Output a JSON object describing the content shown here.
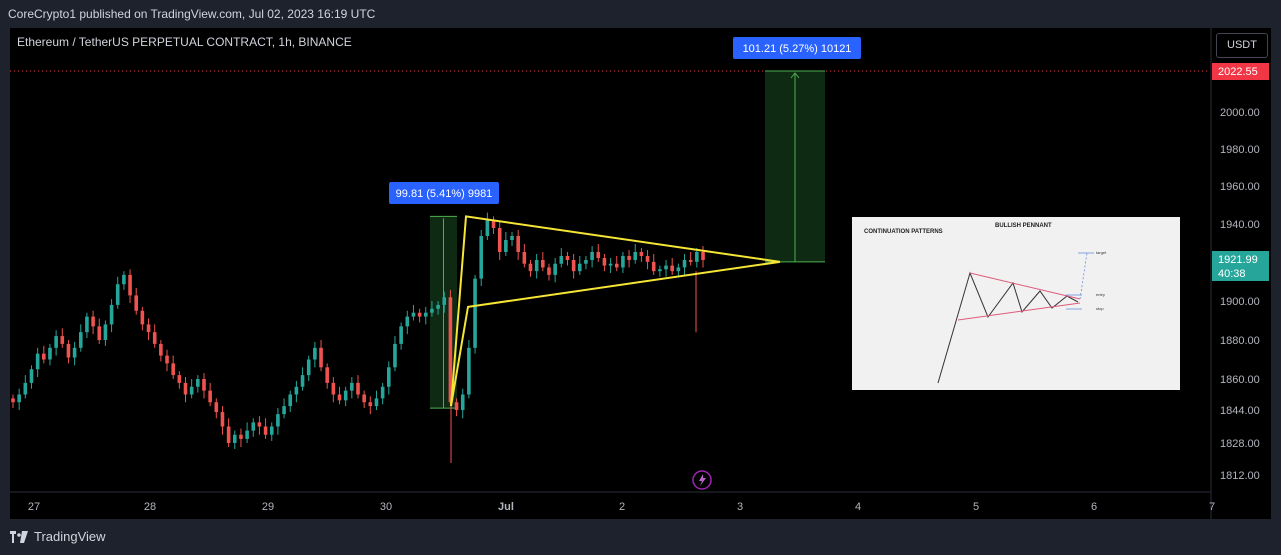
{
  "header": {
    "publisher_text": "CoreCrypto1 published on TradingView.com, Jul 02, 2023 16:19 UTC"
  },
  "pane": {
    "title": "Ethereum / TetherUS PERPETUAL CONTRACT, 1h, BINANCE",
    "currency_button": "USDT"
  },
  "footer": {
    "brand": "TradingView"
  },
  "colors": {
    "up": "#26a69a",
    "down": "#ef5350",
    "pennant": "#f5e536",
    "measure_fill": "#0f2a12",
    "measure_line": "#4caf50",
    "label_bg": "#2962ff",
    "price_tag": "#f23645",
    "live_tag": "#26a69a"
  },
  "chart_data": {
    "type": "candlestick",
    "y_axis": {
      "ticks": [
        2000.0,
        1980.0,
        1960.0,
        1940.0,
        1900.0,
        1880.0,
        1860.0,
        1844.0,
        1828.0,
        1812.0
      ],
      "tick_labels": [
        "2000.00",
        "1980.00",
        "1960.00",
        "1940.00",
        "1900.00",
        "1880.00",
        "1860.00",
        "1844.00",
        "1828.00",
        "1812.00"
      ],
      "ylim": [
        1808,
        2032
      ]
    },
    "x_axis": {
      "tick_labels": [
        "27",
        "28",
        "29",
        "30",
        "Jul",
        "2",
        "3",
        "4",
        "5",
        "6",
        "7"
      ]
    },
    "price_tags": [
      {
        "label": "2022.55",
        "value": 2022.55,
        "color": "#f23645"
      },
      {
        "label": "1921.99",
        "sub": "40:38",
        "value": 1921.99,
        "color": "#26a69a"
      }
    ],
    "measures": [
      {
        "label": "99.81 (5.41%) 9981",
        "from": 1845,
        "to": 1944
      },
      {
        "label": "101.21 (5.27%) 10121",
        "from": 1921,
        "to": 2022.55
      }
    ],
    "close_series": [
      1848,
      1852,
      1858,
      1865,
      1873,
      1870,
      1876,
      1882,
      1878,
      1871,
      1876,
      1884,
      1892,
      1887,
      1880,
      1888,
      1898,
      1909,
      1914,
      1903,
      1895,
      1888,
      1884,
      1878,
      1872,
      1868,
      1862,
      1858,
      1852,
      1856,
      1860,
      1854,
      1848,
      1843,
      1836,
      1828,
      1832,
      1830,
      1834,
      1838,
      1836,
      1832,
      1836,
      1842,
      1846,
      1852,
      1856,
      1862,
      1870,
      1876,
      1866,
      1858,
      1852,
      1849,
      1854,
      1858,
      1852,
      1848,
      1846,
      1850,
      1856,
      1866,
      1878,
      1887,
      1892,
      1894,
      1892,
      1894,
      1896,
      1898,
      1902,
      1848,
      1844,
      1852,
      1876,
      1912,
      1934,
      1942,
      1938,
      1926,
      1932,
      1934,
      1926,
      1920,
      1916,
      1922,
      1918,
      1914,
      1920,
      1924,
      1922,
      1916,
      1920,
      1922,
      1926,
      1923,
      1919,
      1920,
      1918,
      1924,
      1922,
      1926,
      1924,
      1921,
      1916,
      1917,
      1919,
      1916,
      1918,
      1922,
      1921,
      1926,
      1922
    ],
    "pennant": {
      "title": "BULLISH PENNANT"
    },
    "inset": {
      "title": "CONTINUATION PATTERNS",
      "subtitle": "BULLISH PENNANT",
      "labels": [
        "target",
        "entry",
        "stop"
      ]
    }
  }
}
